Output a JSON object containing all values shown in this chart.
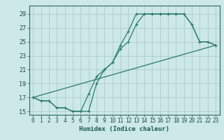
{
  "xlabel": "Humidex (Indice chaleur)",
  "bg_color": "#cce8e8",
  "grid_color": "#aacccc",
  "line_color": "#2d7a6a",
  "markersize": 3.5,
  "linewidth": 0.9,
  "xlim": [
    -0.5,
    23.5
  ],
  "ylim": [
    14.5,
    30.2
  ],
  "xticks": [
    0,
    1,
    2,
    3,
    4,
    5,
    6,
    7,
    8,
    9,
    10,
    11,
    12,
    13,
    14,
    15,
    16,
    17,
    18,
    19,
    20,
    21,
    22,
    23
  ],
  "yticks": [
    15,
    17,
    19,
    21,
    23,
    25,
    27,
    29
  ],
  "lines": [
    {
      "x": [
        0,
        1,
        2,
        3,
        4,
        5,
        6,
        7,
        8,
        9,
        10,
        11,
        12,
        13,
        14,
        15,
        16,
        17,
        18,
        19,
        20,
        21,
        22,
        23
      ],
      "y": [
        17,
        16.5,
        16.5,
        15.5,
        15.5,
        15,
        15,
        15,
        19,
        21,
        22,
        24.5,
        26.5,
        29,
        29,
        29,
        29,
        29,
        29,
        29,
        27.5,
        25,
        25,
        24.5
      ]
    },
    {
      "x": [
        0,
        1,
        2,
        3,
        4,
        5,
        6,
        7,
        8,
        9,
        10,
        11,
        12,
        13,
        14,
        15,
        16,
        17,
        18,
        19,
        20,
        21,
        22,
        23
      ],
      "y": [
        17,
        16.5,
        16.5,
        15.5,
        15.5,
        15,
        15,
        17.5,
        20,
        21,
        22,
        24,
        25,
        27.5,
        29,
        29,
        29,
        29,
        29,
        29,
        27.5,
        25,
        25,
        24.5
      ]
    },
    {
      "x": [
        0,
        23
      ],
      "y": [
        17,
        24.5
      ]
    }
  ]
}
